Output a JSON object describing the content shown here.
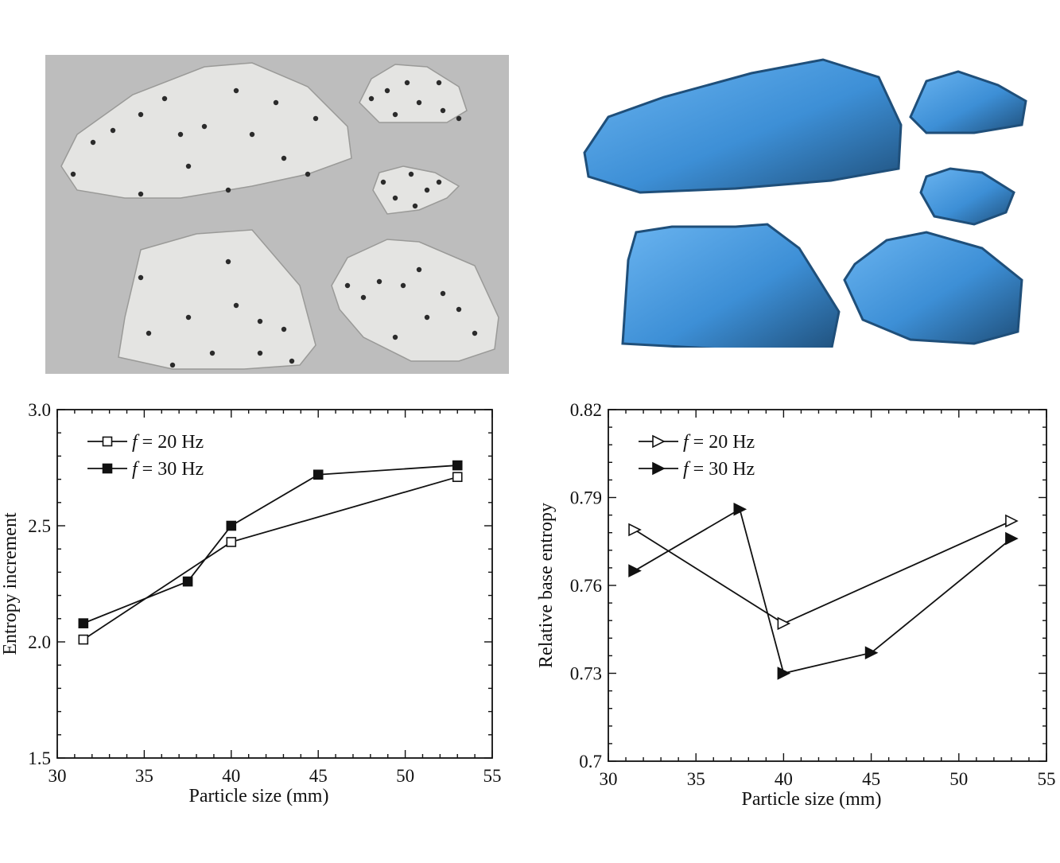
{
  "colors": {
    "photo_bg": "#bdbdbd",
    "rock_fill": "#e4e4e2",
    "rock_dot": "#2b2b2b",
    "scan_fill": "#3d8fd6",
    "scan_dark": "#1f4f7a",
    "axis": "#111111"
  },
  "images": {
    "left": {
      "icon": "rock-particles-photo"
    },
    "right": {
      "icon": "rock-3d-scan-render"
    }
  },
  "chart_data": [
    {
      "type": "line",
      "xlabel": "Particle size (mm)",
      "ylabel": "Entropy increment",
      "xlim": [
        30,
        55
      ],
      "ylim": [
        1.5,
        3.0
      ],
      "xticks": [
        "30",
        "35",
        "40",
        "45",
        "50",
        "55"
      ],
      "yticks": [
        "1.5",
        "2.0",
        "2.5",
        "3.0"
      ],
      "legend_position": "top-left",
      "series": [
        {
          "name_prefix": "f",
          "name_suffix": " = 20 Hz",
          "marker": "open-square",
          "x": [
            31.5,
            40,
            53
          ],
          "y": [
            2.01,
            2.43,
            2.71
          ]
        },
        {
          "name_prefix": "f",
          "name_suffix": " = 30 Hz",
          "marker": "filled-square",
          "x": [
            31.5,
            37.5,
            40,
            45,
            53
          ],
          "y": [
            2.08,
            2.26,
            2.5,
            2.72,
            2.76
          ]
        }
      ]
    },
    {
      "type": "line",
      "xlabel": "Particle size (mm)",
      "ylabel": "Relative base entropy",
      "xlim": [
        30,
        55
      ],
      "ylim": [
        0.7,
        0.82
      ],
      "xticks": [
        "30",
        "35",
        "40",
        "45",
        "50",
        "55"
      ],
      "yticks": [
        "0.7",
        "0.73",
        "0.76",
        "0.79",
        "0.82"
      ],
      "legend_position": "top-left",
      "series": [
        {
          "name_prefix": "f",
          "name_suffix": " = 20 Hz",
          "marker": "open-triangle-right",
          "x": [
            31.5,
            40,
            53
          ],
          "y": [
            0.779,
            0.747,
            0.782
          ]
        },
        {
          "name_prefix": "f",
          "name_suffix": " = 30 Hz",
          "marker": "filled-triangle-right",
          "x": [
            31.5,
            37.5,
            40,
            45,
            53
          ],
          "y": [
            0.765,
            0.786,
            0.73,
            0.737,
            0.776
          ]
        }
      ]
    }
  ]
}
